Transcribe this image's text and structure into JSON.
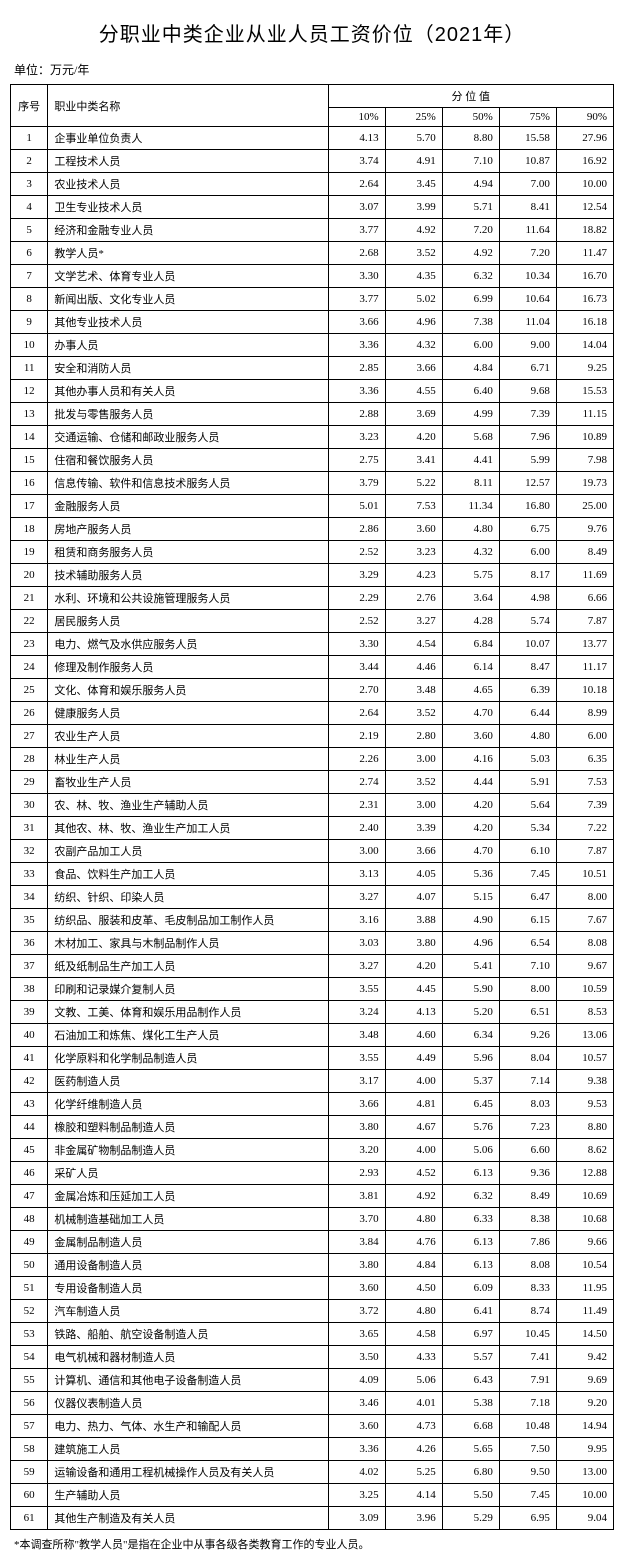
{
  "title": "分职业中类企业从业人员工资价位（2021年）",
  "unit": "单位：万元/年",
  "footnote": "*本调查所称\"教学人员\"是指在企业中从事各级各类教育工作的专业人员。",
  "headers": {
    "index": "序号",
    "name": "职业中类名称",
    "percentile_group": "分 位 值",
    "p10": "10%",
    "p25": "25%",
    "p50": "50%",
    "p75": "75%",
    "p90": "90%"
  },
  "rows": [
    {
      "idx": "1",
      "name": "企事业单位负责人",
      "p10": "4.13",
      "p25": "5.70",
      "p50": "8.80",
      "p75": "15.58",
      "p90": "27.96"
    },
    {
      "idx": "2",
      "name": "工程技术人员",
      "p10": "3.74",
      "p25": "4.91",
      "p50": "7.10",
      "p75": "10.87",
      "p90": "16.92"
    },
    {
      "idx": "3",
      "name": "农业技术人员",
      "p10": "2.64",
      "p25": "3.45",
      "p50": "4.94",
      "p75": "7.00",
      "p90": "10.00"
    },
    {
      "idx": "4",
      "name": "卫生专业技术人员",
      "p10": "3.07",
      "p25": "3.99",
      "p50": "5.71",
      "p75": "8.41",
      "p90": "12.54"
    },
    {
      "idx": "5",
      "name": "经济和金融专业人员",
      "p10": "3.77",
      "p25": "4.92",
      "p50": "7.20",
      "p75": "11.64",
      "p90": "18.82"
    },
    {
      "idx": "6",
      "name": "教学人员*",
      "p10": "2.68",
      "p25": "3.52",
      "p50": "4.92",
      "p75": "7.20",
      "p90": "11.47"
    },
    {
      "idx": "7",
      "name": "文学艺术、体育专业人员",
      "p10": "3.30",
      "p25": "4.35",
      "p50": "6.32",
      "p75": "10.34",
      "p90": "16.70"
    },
    {
      "idx": "8",
      "name": "新闻出版、文化专业人员",
      "p10": "3.77",
      "p25": "5.02",
      "p50": "6.99",
      "p75": "10.64",
      "p90": "16.73"
    },
    {
      "idx": "9",
      "name": "其他专业技术人员",
      "p10": "3.66",
      "p25": "4.96",
      "p50": "7.38",
      "p75": "11.04",
      "p90": "16.18"
    },
    {
      "idx": "10",
      "name": "办事人员",
      "p10": "3.36",
      "p25": "4.32",
      "p50": "6.00",
      "p75": "9.00",
      "p90": "14.04"
    },
    {
      "idx": "11",
      "name": "安全和消防人员",
      "p10": "2.85",
      "p25": "3.66",
      "p50": "4.84",
      "p75": "6.71",
      "p90": "9.25"
    },
    {
      "idx": "12",
      "name": "其他办事人员和有关人员",
      "p10": "3.36",
      "p25": "4.55",
      "p50": "6.40",
      "p75": "9.68",
      "p90": "15.53"
    },
    {
      "idx": "13",
      "name": "批发与零售服务人员",
      "p10": "2.88",
      "p25": "3.69",
      "p50": "4.99",
      "p75": "7.39",
      "p90": "11.15"
    },
    {
      "idx": "14",
      "name": "交通运输、仓储和邮政业服务人员",
      "p10": "3.23",
      "p25": "4.20",
      "p50": "5.68",
      "p75": "7.96",
      "p90": "10.89"
    },
    {
      "idx": "15",
      "name": "住宿和餐饮服务人员",
      "p10": "2.75",
      "p25": "3.41",
      "p50": "4.41",
      "p75": "5.99",
      "p90": "7.98"
    },
    {
      "idx": "16",
      "name": "信息传输、软件和信息技术服务人员",
      "p10": "3.79",
      "p25": "5.22",
      "p50": "8.11",
      "p75": "12.57",
      "p90": "19.73"
    },
    {
      "idx": "17",
      "name": "金融服务人员",
      "p10": "5.01",
      "p25": "7.53",
      "p50": "11.34",
      "p75": "16.80",
      "p90": "25.00"
    },
    {
      "idx": "18",
      "name": "房地产服务人员",
      "p10": "2.86",
      "p25": "3.60",
      "p50": "4.80",
      "p75": "6.75",
      "p90": "9.76"
    },
    {
      "idx": "19",
      "name": "租赁和商务服务人员",
      "p10": "2.52",
      "p25": "3.23",
      "p50": "4.32",
      "p75": "6.00",
      "p90": "8.49"
    },
    {
      "idx": "20",
      "name": "技术辅助服务人员",
      "p10": "3.29",
      "p25": "4.23",
      "p50": "5.75",
      "p75": "8.17",
      "p90": "11.69"
    },
    {
      "idx": "21",
      "name": "水利、环境和公共设施管理服务人员",
      "p10": "2.29",
      "p25": "2.76",
      "p50": "3.64",
      "p75": "4.98",
      "p90": "6.66"
    },
    {
      "idx": "22",
      "name": "居民服务人员",
      "p10": "2.52",
      "p25": "3.27",
      "p50": "4.28",
      "p75": "5.74",
      "p90": "7.87"
    },
    {
      "idx": "23",
      "name": "电力、燃气及水供应服务人员",
      "p10": "3.30",
      "p25": "4.54",
      "p50": "6.84",
      "p75": "10.07",
      "p90": "13.77"
    },
    {
      "idx": "24",
      "name": "修理及制作服务人员",
      "p10": "3.44",
      "p25": "4.46",
      "p50": "6.14",
      "p75": "8.47",
      "p90": "11.17"
    },
    {
      "idx": "25",
      "name": "文化、体育和娱乐服务人员",
      "p10": "2.70",
      "p25": "3.48",
      "p50": "4.65",
      "p75": "6.39",
      "p90": "10.18"
    },
    {
      "idx": "26",
      "name": "健康服务人员",
      "p10": "2.64",
      "p25": "3.52",
      "p50": "4.70",
      "p75": "6.44",
      "p90": "8.99"
    },
    {
      "idx": "27",
      "name": "农业生产人员",
      "p10": "2.19",
      "p25": "2.80",
      "p50": "3.60",
      "p75": "4.80",
      "p90": "6.00"
    },
    {
      "idx": "28",
      "name": "林业生产人员",
      "p10": "2.26",
      "p25": "3.00",
      "p50": "4.16",
      "p75": "5.03",
      "p90": "6.35"
    },
    {
      "idx": "29",
      "name": "畜牧业生产人员",
      "p10": "2.74",
      "p25": "3.52",
      "p50": "4.44",
      "p75": "5.91",
      "p90": "7.53"
    },
    {
      "idx": "30",
      "name": "农、林、牧、渔业生产辅助人员",
      "p10": "2.31",
      "p25": "3.00",
      "p50": "4.20",
      "p75": "5.64",
      "p90": "7.39"
    },
    {
      "idx": "31",
      "name": "其他农、林、牧、渔业生产加工人员",
      "p10": "2.40",
      "p25": "3.39",
      "p50": "4.20",
      "p75": "5.34",
      "p90": "7.22"
    },
    {
      "idx": "32",
      "name": "农副产品加工人员",
      "p10": "3.00",
      "p25": "3.66",
      "p50": "4.70",
      "p75": "6.10",
      "p90": "7.87"
    },
    {
      "idx": "33",
      "name": "食品、饮料生产加工人员",
      "p10": "3.13",
      "p25": "4.05",
      "p50": "5.36",
      "p75": "7.45",
      "p90": "10.51"
    },
    {
      "idx": "34",
      "name": "纺织、针织、印染人员",
      "p10": "3.27",
      "p25": "4.07",
      "p50": "5.15",
      "p75": "6.47",
      "p90": "8.00"
    },
    {
      "idx": "35",
      "name": "纺织品、服装和皮革、毛皮制品加工制作人员",
      "p10": "3.16",
      "p25": "3.88",
      "p50": "4.90",
      "p75": "6.15",
      "p90": "7.67"
    },
    {
      "idx": "36",
      "name": "木材加工、家具与木制品制作人员",
      "p10": "3.03",
      "p25": "3.80",
      "p50": "4.96",
      "p75": "6.54",
      "p90": "8.08"
    },
    {
      "idx": "37",
      "name": "纸及纸制品生产加工人员",
      "p10": "3.27",
      "p25": "4.20",
      "p50": "5.41",
      "p75": "7.10",
      "p90": "9.67"
    },
    {
      "idx": "38",
      "name": "印刷和记录媒介复制人员",
      "p10": "3.55",
      "p25": "4.45",
      "p50": "5.90",
      "p75": "8.00",
      "p90": "10.59"
    },
    {
      "idx": "39",
      "name": "文教、工美、体育和娱乐用品制作人员",
      "p10": "3.24",
      "p25": "4.13",
      "p50": "5.20",
      "p75": "6.51",
      "p90": "8.53"
    },
    {
      "idx": "40",
      "name": "石油加工和炼焦、煤化工生产人员",
      "p10": "3.48",
      "p25": "4.60",
      "p50": "6.34",
      "p75": "9.26",
      "p90": "13.06"
    },
    {
      "idx": "41",
      "name": "化学原料和化学制品制造人员",
      "p10": "3.55",
      "p25": "4.49",
      "p50": "5.96",
      "p75": "8.04",
      "p90": "10.57"
    },
    {
      "idx": "42",
      "name": "医药制造人员",
      "p10": "3.17",
      "p25": "4.00",
      "p50": "5.37",
      "p75": "7.14",
      "p90": "9.38"
    },
    {
      "idx": "43",
      "name": "化学纤维制造人员",
      "p10": "3.66",
      "p25": "4.81",
      "p50": "6.45",
      "p75": "8.03",
      "p90": "9.53"
    },
    {
      "idx": "44",
      "name": "橡胶和塑料制品制造人员",
      "p10": "3.80",
      "p25": "4.67",
      "p50": "5.76",
      "p75": "7.23",
      "p90": "8.80"
    },
    {
      "idx": "45",
      "name": "非金属矿物制品制造人员",
      "p10": "3.20",
      "p25": "4.00",
      "p50": "5.06",
      "p75": "6.60",
      "p90": "8.62"
    },
    {
      "idx": "46",
      "name": "采矿人员",
      "p10": "2.93",
      "p25": "4.52",
      "p50": "6.13",
      "p75": "9.36",
      "p90": "12.88"
    },
    {
      "idx": "47",
      "name": "金属冶炼和压延加工人员",
      "p10": "3.81",
      "p25": "4.92",
      "p50": "6.32",
      "p75": "8.49",
      "p90": "10.69"
    },
    {
      "idx": "48",
      "name": "机械制造基础加工人员",
      "p10": "3.70",
      "p25": "4.80",
      "p50": "6.33",
      "p75": "8.38",
      "p90": "10.68"
    },
    {
      "idx": "49",
      "name": "金属制品制造人员",
      "p10": "3.84",
      "p25": "4.76",
      "p50": "6.13",
      "p75": "7.86",
      "p90": "9.66"
    },
    {
      "idx": "50",
      "name": "通用设备制造人员",
      "p10": "3.80",
      "p25": "4.84",
      "p50": "6.13",
      "p75": "8.08",
      "p90": "10.54"
    },
    {
      "idx": "51",
      "name": "专用设备制造人员",
      "p10": "3.60",
      "p25": "4.50",
      "p50": "6.09",
      "p75": "8.33",
      "p90": "11.95"
    },
    {
      "idx": "52",
      "name": "汽车制造人员",
      "p10": "3.72",
      "p25": "4.80",
      "p50": "6.41",
      "p75": "8.74",
      "p90": "11.49"
    },
    {
      "idx": "53",
      "name": "铁路、船舶、航空设备制造人员",
      "p10": "3.65",
      "p25": "4.58",
      "p50": "6.97",
      "p75": "10.45",
      "p90": "14.50"
    },
    {
      "idx": "54",
      "name": "电气机械和器材制造人员",
      "p10": "3.50",
      "p25": "4.33",
      "p50": "5.57",
      "p75": "7.41",
      "p90": "9.42"
    },
    {
      "idx": "55",
      "name": "计算机、通信和其他电子设备制造人员",
      "p10": "4.09",
      "p25": "5.06",
      "p50": "6.43",
      "p75": "7.91",
      "p90": "9.69"
    },
    {
      "idx": "56",
      "name": "仪器仪表制造人员",
      "p10": "3.46",
      "p25": "4.01",
      "p50": "5.38",
      "p75": "7.18",
      "p90": "9.20"
    },
    {
      "idx": "57",
      "name": "电力、热力、气体、水生产和输配人员",
      "p10": "3.60",
      "p25": "4.73",
      "p50": "6.68",
      "p75": "10.48",
      "p90": "14.94"
    },
    {
      "idx": "58",
      "name": "建筑施工人员",
      "p10": "3.36",
      "p25": "4.26",
      "p50": "5.65",
      "p75": "7.50",
      "p90": "9.95"
    },
    {
      "idx": "59",
      "name": "运输设备和通用工程机械操作人员及有关人员",
      "p10": "4.02",
      "p25": "5.25",
      "p50": "6.80",
      "p75": "9.50",
      "p90": "13.00"
    },
    {
      "idx": "60",
      "name": "生产辅助人员",
      "p10": "3.25",
      "p25": "4.14",
      "p50": "5.50",
      "p75": "7.45",
      "p90": "10.00"
    },
    {
      "idx": "61",
      "name": "其他生产制造及有关人员",
      "p10": "3.09",
      "p25": "3.96",
      "p50": "5.29",
      "p75": "6.95",
      "p90": "9.04"
    }
  ]
}
